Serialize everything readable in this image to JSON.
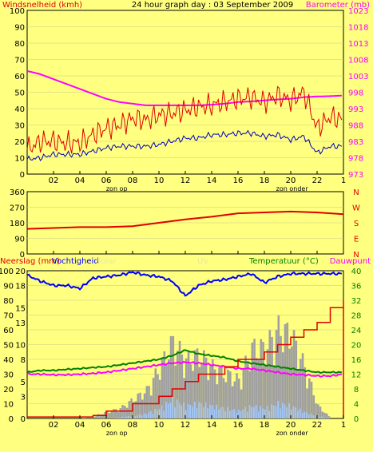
{
  "title": "24 hour graph day : 03 September 2009",
  "colors": {
    "background": "#ffff80",
    "frame": "#000000",
    "wind": "#e00000",
    "wind_avg": "#0000c0",
    "barometer": "#ff00ff",
    "direction": "#e00000",
    "humidity": "#0000ff",
    "temperature": "#008000",
    "dewpoint": "#ff00ff",
    "rain": "#e00000",
    "solar": "#a0a0a0",
    "uv": "#a0c8ff",
    "axis_left": "#000000",
    "axis_right_top": "#ff00ff",
    "axis_right_bottom": "#008000"
  },
  "x_ticks": [
    "02",
    "04",
    "06",
    "08",
    "10",
    "12",
    "14",
    "16",
    "18",
    "20",
    "22",
    "1"
  ],
  "markers": {
    "sunrise": "zon op",
    "sunset": "zon onder"
  },
  "chart_data": [
    {
      "id": "wind-baro",
      "type": "line",
      "left_label": "Windsnelheid (kmh)",
      "right_label": "Barometer (mb)",
      "left_ticks": [
        "100",
        "90",
        "80",
        "70",
        "60",
        "50",
        "40",
        "30",
        "20",
        "10",
        "0"
      ],
      "right_ticks": [
        "1023",
        "1018",
        "1013",
        "1008",
        "1003",
        "998",
        "993",
        "988",
        "983",
        "978",
        "973"
      ],
      "ylim_left": [
        0,
        100
      ],
      "ylim_right": [
        973,
        1023
      ],
      "x": [
        0,
        1,
        2,
        3,
        4,
        5,
        6,
        7,
        8,
        9,
        10,
        11,
        12,
        13,
        14,
        15,
        16,
        17,
        18,
        19,
        20,
        21,
        22,
        23,
        24
      ],
      "series": [
        {
          "key": "gust",
          "values": [
            15,
            20,
            20,
            19,
            19,
            24,
            28,
            30,
            34,
            33,
            36,
            37,
            39,
            41,
            42,
            44,
            46,
            47,
            44,
            48,
            45,
            50,
            28,
            35,
            33
          ]
        },
        {
          "key": "avg",
          "values": [
            9,
            10,
            12,
            12,
            12,
            14,
            16,
            17,
            17,
            17,
            18,
            20,
            22,
            22,
            24,
            24,
            25,
            25,
            23,
            24,
            21,
            23,
            13,
            17,
            17
          ]
        },
        {
          "key": "baro",
          "values": [
            1004.5,
            1003.5,
            1002,
            1000.5,
            999,
            997.5,
            996,
            995,
            994.5,
            994,
            994,
            994,
            994,
            994,
            994.2,
            994.5,
            995,
            995.2,
            995.5,
            995.8,
            996,
            996.5,
            996.7,
            996.8,
            997
          ]
        }
      ]
    },
    {
      "id": "direction",
      "type": "line",
      "left_ticks": [
        "360",
        "270",
        "180",
        "90",
        "0"
      ],
      "right_ticks": [
        "N",
        "W",
        "S",
        "E",
        "N"
      ],
      "ylim": [
        0,
        360
      ],
      "x": [
        0,
        2,
        4,
        6,
        8,
        10,
        12,
        14,
        16,
        18,
        20,
        22,
        24
      ],
      "values": [
        145,
        150,
        155,
        155,
        160,
        180,
        200,
        215,
        235,
        240,
        245,
        240,
        230
      ]
    },
    {
      "id": "rain-temp",
      "type": "line",
      "labels": {
        "rain": "Neerslag (mm)",
        "humidity": "Vochtigheid",
        "solar": "Solar",
        "uv": "UV",
        "temperature": "Temperatuur (°C)",
        "dewpoint": "Dauwpunt"
      },
      "left_ticks": [
        "100",
        "90",
        "80",
        "70",
        "60",
        "50",
        "40",
        "30",
        "20",
        "10",
        "0"
      ],
      "rain_ticks": [
        "20",
        "18",
        "15",
        "13",
        "10",
        "8",
        "5",
        "3",
        "0"
      ],
      "right_ticks": [
        "40",
        "36",
        "32",
        "28",
        "24",
        "20",
        "16",
        "12",
        "8",
        "4",
        "0"
      ],
      "x": [
        0,
        1,
        2,
        3,
        4,
        5,
        6,
        7,
        8,
        9,
        10,
        11,
        12,
        13,
        14,
        15,
        16,
        17,
        18,
        19,
        20,
        21,
        22,
        23,
        24
      ],
      "series": [
        {
          "key": "humidity",
          "values": [
            97,
            93,
            90,
            90,
            88,
            95,
            96,
            97,
            99,
            97,
            96,
            93,
            83,
            90,
            93,
            94,
            96,
            98,
            92,
            96,
            98,
            98,
            98,
            98,
            98
          ]
        },
        {
          "key": "temperature",
          "values": [
            12.5,
            13,
            13,
            13.3,
            13.5,
            13.8,
            14,
            14.5,
            15,
            15.5,
            16,
            17,
            18.5,
            17.5,
            17,
            16.5,
            15.5,
            15,
            14.5,
            14,
            13.5,
            13,
            12.5,
            12.5,
            12.5
          ]
        },
        {
          "key": "dewpoint",
          "values": [
            12,
            12,
            11.8,
            11.8,
            12,
            12.2,
            12.5,
            13,
            13.5,
            14,
            14.5,
            15,
            15.2,
            15,
            14.5,
            14,
            13.5,
            13.5,
            13,
            12.5,
            12,
            11.8,
            11.5,
            11.5,
            12
          ]
        },
        {
          "key": "rain",
          "values": [
            0.2,
            0.2,
            0.2,
            0.2,
            0.2,
            0.4,
            1,
            1,
            2,
            2,
            3,
            4,
            5,
            6,
            6,
            7,
            8,
            8,
            9,
            10,
            11,
            12,
            13,
            15,
            16
          ]
        },
        {
          "key": "solar",
          "values": [
            0,
            0,
            0,
            0,
            0,
            2,
            5,
            8,
            15,
            22,
            40,
            60,
            45,
            50,
            40,
            35,
            30,
            55,
            55,
            70,
            65,
            40,
            10,
            0,
            0
          ]
        },
        {
          "key": "uv",
          "values": [
            0,
            0,
            0,
            0,
            0,
            0,
            0,
            1,
            2,
            4,
            8,
            15,
            10,
            12,
            10,
            8,
            6,
            10,
            8,
            12,
            10,
            5,
            2,
            0,
            0
          ]
        }
      ]
    }
  ]
}
